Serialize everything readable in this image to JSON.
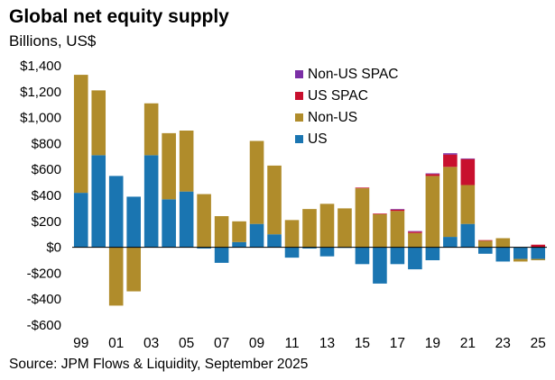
{
  "title": "Global net equity supply",
  "subtitle": "Billions, US$",
  "source": "Source: JPM Flows & Liquidity, September 2025",
  "colors": {
    "us": "#1a75b1",
    "non_us": "#b08c2b",
    "us_spac": "#c8102e",
    "non_us_spac": "#7b2fa6",
    "zero_line": "#000000"
  },
  "chart_data": {
    "type": "bar",
    "stacked": true,
    "title": "Global net equity supply",
    "subtitle": "Billions, US$",
    "ylim": [
      -600,
      1400
    ],
    "y_ticks": [
      1400,
      1200,
      1000,
      800,
      600,
      400,
      200,
      0,
      -200,
      -400,
      -600
    ],
    "y_tick_labels": [
      "$1,400",
      "$1,200",
      "$1,000",
      "$800",
      "$600",
      "$400",
      "$200",
      "$0",
      "-$200",
      "-$400",
      "-$600"
    ],
    "x_tick_labels": [
      "99",
      "01",
      "03",
      "05",
      "07",
      "09",
      "11",
      "13",
      "15",
      "17",
      "19",
      "21",
      "23",
      "25"
    ],
    "categories": [
      "1999",
      "2000",
      "2001",
      "2002",
      "2003",
      "2004",
      "2005",
      "2006",
      "2007",
      "2008",
      "2009",
      "2010",
      "2011",
      "2012",
      "2013",
      "2014",
      "2015",
      "2016",
      "2017",
      "2018",
      "2019",
      "2020",
      "2021",
      "2022",
      "2023",
      "2024",
      "2025"
    ],
    "legend": [
      "Non-US SPAC",
      "US SPAC",
      "Non-US",
      "US"
    ],
    "legend_position": "top-right",
    "series": [
      {
        "name": "US",
        "color_key": "us",
        "values": [
          420,
          710,
          550,
          390,
          710,
          370,
          430,
          -10,
          -120,
          40,
          180,
          100,
          -80,
          -10,
          -70,
          -5,
          -130,
          -280,
          -130,
          -170,
          -100,
          80,
          180,
          -50,
          -110,
          -90,
          -90
        ]
      },
      {
        "name": "Non-US",
        "color_key": "non_us",
        "values": [
          910,
          500,
          -450,
          -340,
          400,
          510,
          470,
          410,
          240,
          160,
          640,
          530,
          210,
          295,
          335,
          300,
          455,
          255,
          280,
          110,
          550,
          540,
          300,
          50,
          70,
          -20,
          -10
        ]
      },
      {
        "name": "US SPAC",
        "color_key": "us_spac",
        "values": [
          0,
          0,
          0,
          0,
          0,
          0,
          0,
          0,
          0,
          0,
          0,
          0,
          0,
          0,
          0,
          0,
          5,
          5,
          10,
          10,
          15,
          95,
          200,
          5,
          0,
          0,
          20
        ]
      },
      {
        "name": "Non-US SPAC",
        "color_key": "non_us_spac",
        "values": [
          0,
          0,
          0,
          0,
          0,
          0,
          0,
          0,
          0,
          0,
          0,
          0,
          0,
          0,
          0,
          0,
          0,
          0,
          5,
          5,
          5,
          10,
          5,
          0,
          0,
          0,
          0
        ]
      }
    ]
  }
}
